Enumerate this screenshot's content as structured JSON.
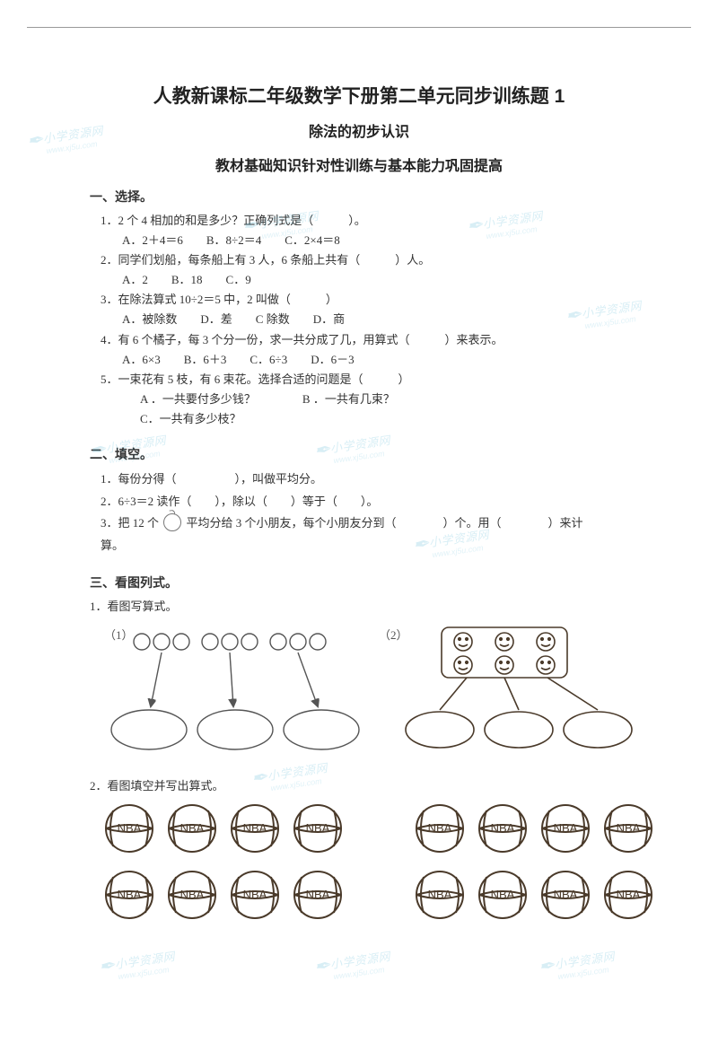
{
  "watermark": {
    "brand": "小学资源网",
    "url": "www.xj5u.com"
  },
  "title": "人教新课标二年级数学下册第二单元同步训练题 1",
  "subtitle": "除法的初步认识",
  "section_heading": "教材基础知识针对性训练与基本能力巩固提高",
  "s1": {
    "heading": "一、选择。",
    "q1": {
      "text": "1．2 个 4 相加的和是多少？正确列式是（　　　）。",
      "opts": "A．2＋4＝6　　B．8÷2＝4　　C．2×4＝8"
    },
    "q2": {
      "text": "2．同学们划船，每条船上有 3 人，6 条船上共有（　　　）人。",
      "opts": "A．2　　B．18　　C．9"
    },
    "q3": {
      "text": "3．在除法算式 10÷2＝5 中，2 叫做（　　　）",
      "opts": "A．被除数　　D．差　　C 除数　　D．商"
    },
    "q4": {
      "text": "4．有 6 个橘子，每 3 个分一份，求一共分成了几，用算式（　　　）来表示。",
      "opts": "A．6×3　　B．6＋3　　C．6÷3　　D．6－3"
    },
    "q5": {
      "text": "5．一束花有 5 枝，有 6 束花。选择合适的问题是（　　　）",
      "a": "A ．一共要付多少钱？　　　　B ．一共有几束？",
      "c": "C．一共有多少枝？"
    }
  },
  "s2": {
    "heading": "二、填空。",
    "l1": "1．每份分得（　　　　　），叫做平均分。",
    "l2": "2．6÷3＝2 读作（　　），除以（　　）等于（　　）。",
    "l3a": "3．把 12 个",
    "l3b": "平均分给 3 个小朋友，每个小朋友分到（　　　　）个。用（　　　　）来计",
    "l3c": "算。"
  },
  "s3": {
    "heading": "三、看图列式。",
    "sub1": "1．看图写算式。",
    "label1": "（1）",
    "label2": "（2）",
    "sub2": "2．看图填空并写出算式。"
  },
  "nba": {
    "label": "NBA",
    "rows": 2,
    "cols": 4,
    "groups": 2
  },
  "colors": {
    "ink": "#4a3a2a",
    "ink_light": "#6b5a45",
    "diagram_stroke": "#555555",
    "face_box": "#4a3a2a"
  }
}
